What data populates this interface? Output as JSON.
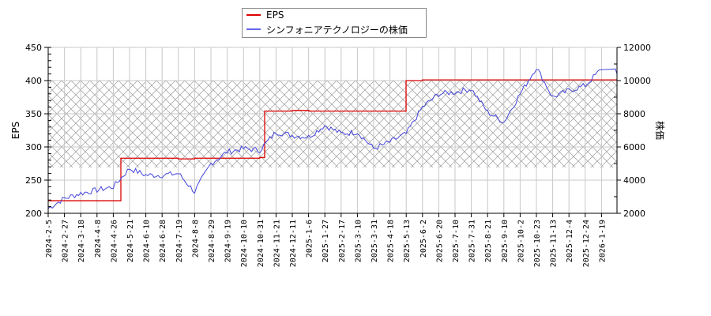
{
  "legend": {
    "items": [
      {
        "label": "EPS",
        "color": "#dd0000"
      },
      {
        "label": "シンフォニアテクノロジーの株価",
        "color": "#4444dd"
      }
    ]
  },
  "axes": {
    "left_label": "EPS",
    "right_label": "株価",
    "left_ticks": [
      "200",
      "250",
      "300",
      "350",
      "400",
      "450"
    ],
    "right_ticks": [
      "2000",
      "4000",
      "6000",
      "8000",
      "10000",
      "12000"
    ],
    "x_ticks": [
      "2024-2-5",
      "2024-2-27",
      "2024-3-18",
      "2024-4-8",
      "2024-4-26",
      "2024-5-21",
      "2024-6-10",
      "2024-6-28",
      "2024-7-19",
      "2024-8-8",
      "2024-8-29",
      "2024-9-19",
      "2024-10-10",
      "2024-10-31",
      "2024-11-21",
      "2024-12-11",
      "2025-1-6",
      "2025-1-27",
      "2025-2-17",
      "2025-3-10",
      "2025-3-31",
      "2025-4-18",
      "2025-5-13",
      "2025-6-2",
      "2025-6-20",
      "2025-7-10",
      "2025-7-31",
      "2025-8-21",
      "2025-9-10",
      "2025-10-2",
      "2025-10-23",
      "2025-11-13",
      "2025-12-4",
      "2025-12-24",
      "2026-1-19"
    ]
  },
  "chart_data": {
    "type": "line",
    "title": "",
    "xlabel": "",
    "ylabel": "EPS",
    "y2label": "株価",
    "ylim": [
      200,
      450
    ],
    "y2lim": [
      2000,
      12000
    ],
    "legend_position": "top-center",
    "grid": true,
    "shaded_band": {
      "axis": "y",
      "from_eps": 270,
      "to_eps": 400,
      "pattern": "crosshatch"
    },
    "x": [
      "2024-2-5",
      "2024-2-27",
      "2024-3-18",
      "2024-4-8",
      "2024-4-26",
      "2024-5-21",
      "2024-6-10",
      "2024-6-28",
      "2024-7-19",
      "2024-8-8",
      "2024-8-29",
      "2024-9-19",
      "2024-10-10",
      "2024-10-31",
      "2024-11-21",
      "2024-12-11",
      "2025-1-6",
      "2025-1-27",
      "2025-2-17",
      "2025-3-10",
      "2025-3-31",
      "2025-4-18",
      "2025-5-13",
      "2025-6-2",
      "2025-6-20",
      "2025-7-10",
      "2025-7-31",
      "2025-8-21",
      "2025-9-10",
      "2025-10-2",
      "2025-10-23",
      "2025-11-13",
      "2025-12-4",
      "2025-12-24",
      "2026-1-19"
    ],
    "series": [
      {
        "name": "EPS",
        "axis": "left",
        "color": "#dd0000",
        "values": [
          219,
          219,
          219,
          219,
          219,
          283,
          283,
          283,
          282,
          283,
          283,
          283,
          283,
          284,
          354,
          355,
          354,
          354,
          354,
          354,
          354,
          354,
          400,
          401,
          401,
          401,
          401,
          401,
          401,
          401,
          401,
          401,
          401,
          401,
          401
        ]
      },
      {
        "name": "シンフォニアテクノロジーの株価",
        "axis": "right",
        "color": "#4444dd",
        "values": [
          2300,
          2900,
          3200,
          3400,
          3600,
          4700,
          4300,
          4300,
          4400,
          3300,
          5000,
          5700,
          5900,
          5800,
          6900,
          6700,
          6600,
          7300,
          6800,
          6900,
          5900,
          6300,
          6800,
          8400,
          9200,
          9300,
          9500,
          8100,
          7500,
          9200,
          10800,
          9000,
          9400,
          9700,
          10700
        ]
      }
    ]
  }
}
